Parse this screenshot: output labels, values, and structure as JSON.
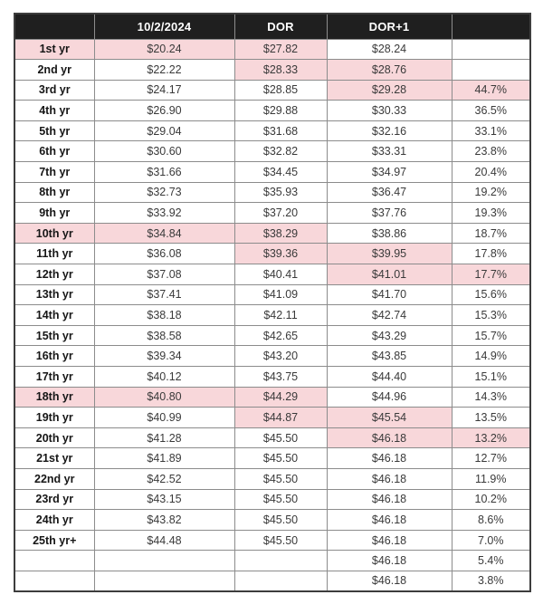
{
  "colors": {
    "header_bg": "#1f1f1f",
    "header_text": "#ffffff",
    "highlight_pink": "#f8d7da",
    "grid_line": "#8c8c8c",
    "outer_border": "#3d3d3d",
    "body_text": "#3a3a3a"
  },
  "chart_data": {
    "type": "table",
    "title": "",
    "columns": [
      "",
      "10/2/2024",
      "DOR",
      "DOR+1",
      ""
    ],
    "rows": [
      [
        "1st yr",
        "$20.24",
        "$27.82",
        "$28.24",
        ""
      ],
      [
        "2nd yr",
        "$22.22",
        "$28.33",
        "$28.76",
        ""
      ],
      [
        "3rd yr",
        "$24.17",
        "$28.85",
        "$29.28",
        "44.7%"
      ],
      [
        "4th yr",
        "$26.90",
        "$29.88",
        "$30.33",
        "36.5%"
      ],
      [
        "5th yr",
        "$29.04",
        "$31.68",
        "$32.16",
        "33.1%"
      ],
      [
        "6th yr",
        "$30.60",
        "$32.82",
        "$33.31",
        "23.8%"
      ],
      [
        "7th yr",
        "$31.66",
        "$34.45",
        "$34.97",
        "20.4%"
      ],
      [
        "8th yr",
        "$32.73",
        "$35.93",
        "$36.47",
        "19.2%"
      ],
      [
        "9th yr",
        "$33.92",
        "$37.20",
        "$37.76",
        "19.3%"
      ],
      [
        "10th yr",
        "$34.84",
        "$38.29",
        "$38.86",
        "18.7%"
      ],
      [
        "11th yr",
        "$36.08",
        "$39.36",
        "$39.95",
        "17.8%"
      ],
      [
        "12th yr",
        "$37.08",
        "$40.41",
        "$41.01",
        "17.7%"
      ],
      [
        "13th yr",
        "$37.41",
        "$41.09",
        "$41.70",
        "15.6%"
      ],
      [
        "14th yr",
        "$38.18",
        "$42.11",
        "$42.74",
        "15.3%"
      ],
      [
        "15th yr",
        "$38.58",
        "$42.65",
        "$43.29",
        "15.7%"
      ],
      [
        "16th yr",
        "$39.34",
        "$43.20",
        "$43.85",
        "14.9%"
      ],
      [
        "17th yr",
        "$40.12",
        "$43.75",
        "$44.40",
        "15.1%"
      ],
      [
        "18th yr",
        "$40.80",
        "$44.29",
        "$44.96",
        "14.3%"
      ],
      [
        "19th yr",
        "$40.99",
        "$44.87",
        "$45.54",
        "13.5%"
      ],
      [
        "20th yr",
        "$41.28",
        "$45.50",
        "$46.18",
        "13.2%"
      ],
      [
        "21st yr",
        "$41.89",
        "$45.50",
        "$46.18",
        "12.7%"
      ],
      [
        "22nd yr",
        "$42.52",
        "$45.50",
        "$46.18",
        "11.9%"
      ],
      [
        "23rd yr",
        "$43.15",
        "$45.50",
        "$46.18",
        "10.2%"
      ],
      [
        "24th yr",
        "$43.82",
        "$45.50",
        "$46.18",
        "8.6%"
      ],
      [
        "25th yr+",
        "$44.48",
        "$45.50",
        "$46.18",
        "7.0%"
      ],
      [
        "",
        "",
        "",
        "$46.18",
        "5.4%"
      ],
      [
        "",
        "",
        "",
        "$46.18",
        "3.8%"
      ]
    ],
    "highlights": [
      {
        "row": 0,
        "cols": [
          0,
          1,
          2
        ]
      },
      {
        "row": 1,
        "cols": [
          2,
          3
        ]
      },
      {
        "row": 2,
        "cols": [
          3,
          4
        ]
      },
      {
        "row": 9,
        "cols": [
          0,
          1,
          2
        ]
      },
      {
        "row": 10,
        "cols": [
          2,
          3
        ]
      },
      {
        "row": 11,
        "cols": [
          3,
          4
        ]
      },
      {
        "row": 17,
        "cols": [
          0,
          1,
          2
        ]
      },
      {
        "row": 18,
        "cols": [
          2,
          3
        ]
      },
      {
        "row": 19,
        "cols": [
          3,
          4
        ]
      }
    ],
    "layout_hints": {
      "header_style": "black background, white bold text",
      "highlight_color": "#f8d7da",
      "grid": true
    }
  }
}
